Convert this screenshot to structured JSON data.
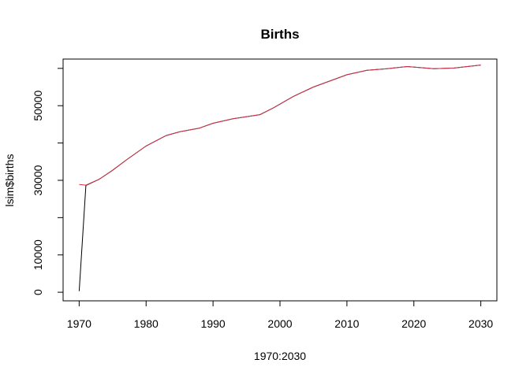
{
  "chart_data": {
    "type": "line",
    "title": "Births",
    "xlabel": "1970:2030",
    "ylabel": "lsim$births",
    "xlim": [
      1967.6,
      2032.4
    ],
    "ylim": [
      -2300,
      62500
    ],
    "x_ticks": [
      1970,
      1980,
      1990,
      2000,
      2010,
      2020,
      2030
    ],
    "y_ticks": [
      0,
      10000,
      30000,
      50000
    ],
    "grid": false,
    "legend": "none",
    "series": [
      {
        "color": "#000000",
        "x": [
          1970,
          1971,
          1973,
          1975,
          1977,
          1980,
          1983,
          1985,
          1988,
          1990,
          1993,
          1997,
          1999,
          2002,
          2005,
          2008,
          2010,
          2013,
          2016,
          2019,
          2023,
          2026,
          2030
        ],
        "y": [
          300,
          28600,
          30300,
          32700,
          35400,
          39200,
          42000,
          43000,
          44000,
          45300,
          46500,
          47600,
          49400,
          52500,
          55000,
          57000,
          58300,
          59500,
          59900,
          60500,
          59900,
          60100,
          60900
        ]
      },
      {
        "color": "#d4314a",
        "x": [
          1970,
          1971,
          1973,
          1975,
          1977,
          1980,
          1983,
          1985,
          1988,
          1990,
          1993,
          1997,
          1999,
          2002,
          2005,
          2008,
          2010,
          2013,
          2016,
          2019,
          2023,
          2026,
          2030
        ],
        "y": [
          28900,
          28700,
          30300,
          32700,
          35400,
          39200,
          42000,
          43000,
          44000,
          45300,
          46500,
          47600,
          49400,
          52500,
          55000,
          57000,
          58300,
          59500,
          59900,
          60500,
          59900,
          60100,
          60900
        ]
      }
    ]
  }
}
